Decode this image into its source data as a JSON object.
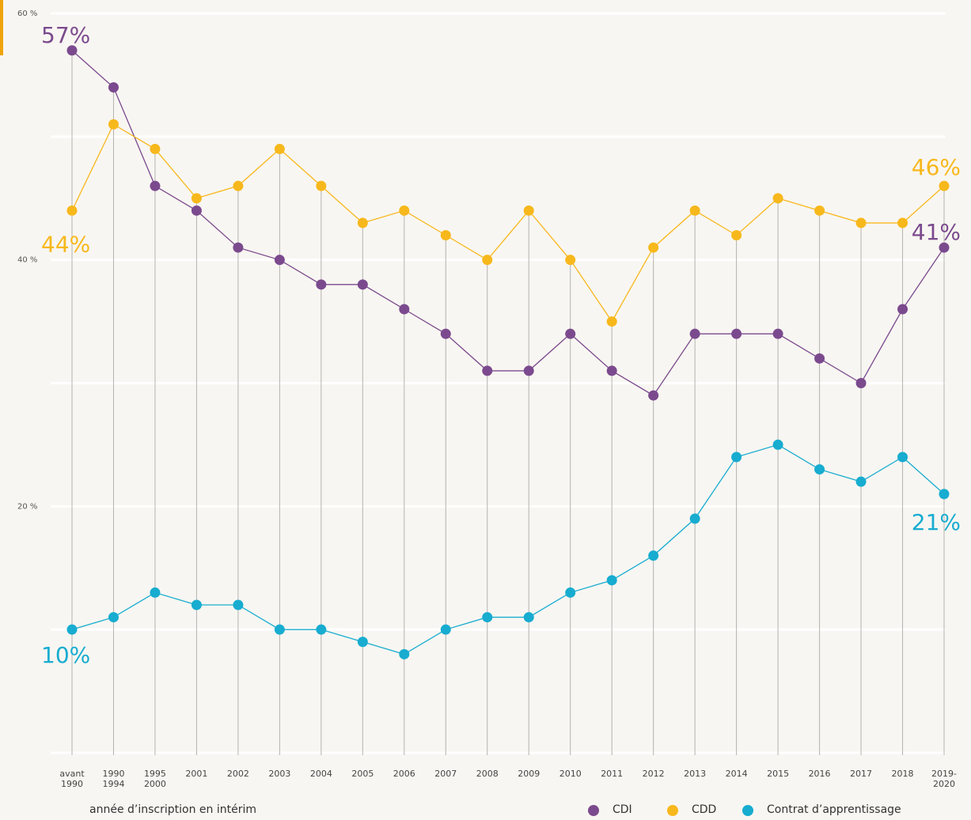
{
  "chart_data": {
    "type": "line",
    "x_label": "année d’inscription en intérim",
    "categories": [
      "avant\n1990",
      "1990\n1994",
      "1995\n2000",
      "2001",
      "2002",
      "2003",
      "2004",
      "2005",
      "2006",
      "2007",
      "2008",
      "2009",
      "2010",
      "2011",
      "2012",
      "2013",
      "2014",
      "2015",
      "2016",
      "2017",
      "2018",
      "2019-\n2020"
    ],
    "series": [
      {
        "name": "CDI",
        "color": "#7b4a8e",
        "values": [
          57,
          54,
          46,
          44,
          41,
          40,
          38,
          38,
          36,
          34,
          31,
          31,
          34,
          31,
          29,
          34,
          34,
          34,
          32,
          30,
          36,
          41
        ],
        "value_labels": [
          "57%",
          null,
          null,
          null,
          null,
          null,
          null,
          null,
          null,
          null,
          null,
          null,
          null,
          null,
          null,
          null,
          null,
          null,
          null,
          null,
          null,
          "41%"
        ]
      },
      {
        "name": "CDD",
        "color": "#f7b81c",
        "values": [
          44,
          51,
          49,
          45,
          46,
          49,
          46,
          43,
          44,
          42,
          40,
          44,
          40,
          35,
          41,
          44,
          42,
          45,
          44,
          43,
          43,
          46
        ],
        "value_labels": [
          "44%",
          null,
          null,
          null,
          null,
          null,
          null,
          null,
          null,
          null,
          null,
          null,
          null,
          null,
          null,
          null,
          null,
          null,
          null,
          null,
          null,
          "46%"
        ]
      },
      {
        "name": "Contrat d’apprentissage",
        "color": "#17acd0",
        "values": [
          10,
          11,
          13,
          12,
          12,
          10,
          10,
          9,
          8,
          10,
          11,
          11,
          13,
          14,
          16,
          19,
          24,
          25,
          23,
          22,
          24,
          21
        ],
        "value_labels": [
          "10%",
          null,
          null,
          null,
          null,
          null,
          null,
          null,
          null,
          null,
          null,
          null,
          null,
          null,
          null,
          null,
          null,
          null,
          null,
          null,
          null,
          "21%"
        ]
      }
    ],
    "ylim": [
      0,
      60
    ],
    "yticks": [
      {
        "value": 20,
        "label": "20 %"
      },
      {
        "value": 40,
        "label": "40 %"
      },
      {
        "value": 60,
        "label": "60 %"
      }
    ],
    "grid_lines": [
      0,
      10,
      20,
      30,
      40,
      50,
      60
    ],
    "legend": "bottom-right"
  }
}
